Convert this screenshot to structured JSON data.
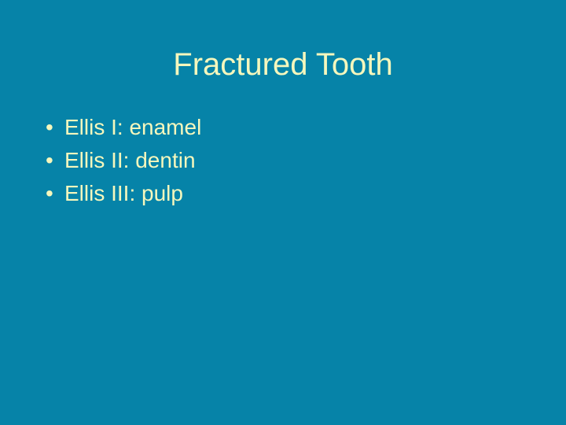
{
  "slide": {
    "title": "Fractured Tooth",
    "bullets": [
      "Ellis I: enamel",
      "Ellis II: dentin",
      "Ellis III: pulp"
    ],
    "background_color": "#0683a8",
    "text_color": "#f5f7bd",
    "title_fontsize": 40,
    "bullet_fontsize": 28
  }
}
